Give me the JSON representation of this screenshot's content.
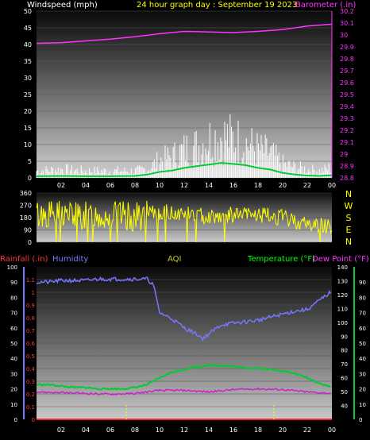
{
  "header": {
    "left_label": "Windspeed (mph)",
    "center_label": "24 hour graph day : September 19 2023",
    "right_label": "Barometer (.in)"
  },
  "hour_ticks": [
    "02",
    "04",
    "06",
    "08",
    "10",
    "12",
    "14",
    "16",
    "18",
    "20",
    "22",
    "00"
  ],
  "colors": {
    "windspeed": "#ffffff",
    "gust": "#00cc33",
    "barometer": "#ff33ff",
    "direction": "#ffff00",
    "humidity": "#7777ff",
    "temperature": "#00cc33",
    "dewpoint": "#cc22cc",
    "rainfall": "#ff2222",
    "label_yellow": "#ffff00",
    "label_magenta": "#ff33ff",
    "label_green": "#00ff00",
    "label_red": "#ff3333",
    "label_blue": "#7777ff"
  },
  "chart_data": [
    {
      "type": "line",
      "name": "wind-barometer",
      "x_labels": [
        "02",
        "04",
        "06",
        "08",
        "10",
        "12",
        "14",
        "16",
        "18",
        "20",
        "22",
        "00"
      ],
      "x_range_hours": [
        0,
        24
      ],
      "left_axis": {
        "label": "Windspeed (mph)",
        "ylim": [
          0,
          50
        ],
        "ticks": [
          "0",
          "5",
          "10",
          "15",
          "20",
          "25",
          "30",
          "35",
          "40",
          "45",
          "50"
        ]
      },
      "right_axis": {
        "label": "Barometer (.in)",
        "ylim": [
          28.8,
          30.2
        ],
        "ticks": [
          "28.8",
          "28.9",
          "29",
          "29.1",
          "29.2",
          "29.3",
          "29.4",
          "29.5",
          "29.6",
          "29.7",
          "29.8",
          "29.9",
          "30",
          "30.1",
          "30.2"
        ]
      },
      "series": [
        {
          "axis": "right",
          "hours": [
            0,
            2,
            4,
            6,
            8,
            10,
            12,
            14,
            16,
            18,
            20,
            22,
            24
          ],
          "values": [
            29.93,
            29.935,
            29.95,
            29.965,
            29.985,
            30.01,
            30.03,
            30.025,
            30.02,
            30.03,
            30.045,
            30.075,
            30.09
          ]
        },
        {
          "axis": "left",
          "hours": [
            0,
            2,
            4,
            6,
            8,
            9,
            10,
            11,
            12,
            13,
            14,
            15,
            16,
            17,
            18,
            19,
            20,
            21,
            22,
            23,
            24
          ],
          "values": [
            2,
            2.5,
            2,
            2,
            2,
            2.5,
            5,
            6,
            8,
            9,
            11,
            12,
            11,
            10,
            8,
            7,
            4,
            3,
            2.5,
            2,
            3
          ]
        },
        {
          "axis": "left",
          "hours": [
            0,
            2,
            4,
            6,
            8,
            9,
            10,
            11,
            12,
            13,
            14,
            15,
            16,
            17,
            18,
            19,
            20,
            21,
            22,
            23,
            24
          ],
          "values": [
            0.5,
            0.6,
            0.5,
            0.5,
            0.6,
            1,
            1.8,
            2.2,
            3,
            3.5,
            4,
            4.5,
            4.2,
            3.8,
            3,
            2.5,
            1.5,
            1,
            0.7,
            0.6,
            0.8
          ]
        }
      ]
    },
    {
      "type": "line",
      "name": "wind-direction",
      "x_range_hours": [
        0,
        24
      ],
      "left_axis": {
        "ylim": [
          0,
          360
        ],
        "ticks": [
          "0",
          "90",
          "180",
          "270",
          "360"
        ]
      },
      "compass_labels": [
        "N",
        "W",
        "S",
        "E",
        "N"
      ],
      "series": [
        {
          "hours": [
            0,
            2,
            4,
            6,
            8,
            10,
            12,
            14,
            16,
            18,
            20,
            22,
            24
          ],
          "values": [
            200,
            210,
            190,
            200,
            180,
            220,
            210,
            190,
            200,
            200,
            180,
            130,
            120
          ]
        }
      ]
    },
    {
      "type": "line",
      "name": "temperature-humidity",
      "x_labels": [
        "02",
        "04",
        "06",
        "08",
        "10",
        "12",
        "14",
        "16",
        "18",
        "20",
        "22",
        "00"
      ],
      "x_range_hours": [
        0,
        24
      ],
      "axes": {
        "rainfall": {
          "label": "Rainfall (.in)",
          "ylim": [
            0,
            1.2
          ],
          "ticks": [
            "0",
            "0.1",
            "0.2",
            "0.3",
            "0.4",
            "0.5",
            "0.6",
            "0.7",
            "0.8",
            "0.9",
            "1",
            "1.1"
          ]
        },
        "humidity": {
          "label": "Humidity",
          "ylim": [
            0,
            100
          ],
          "ticks": [
            "0",
            "10",
            "20",
            "30",
            "40",
            "50",
            "60",
            "70",
            "80",
            "90",
            "100"
          ]
        },
        "temperature": {
          "label": "Temperature (°F)",
          "ylim": [
            30,
            140
          ],
          "ticks": [
            "40",
            "50",
            "60",
            "70",
            "80",
            "90",
            "100",
            "110",
            "120",
            "130",
            "140"
          ]
        },
        "dewpoint": {
          "label": "Dew Point (°F)",
          "ylim": [
            0,
            100
          ],
          "ticks": [
            "0",
            "10",
            "20",
            "30",
            "40",
            "50",
            "60",
            "70",
            "80",
            "90"
          ]
        },
        "aqi": {
          "label": "AQI"
        }
      },
      "series": [
        {
          "axis": "humidity",
          "hours": [
            0,
            1,
            2,
            3,
            4,
            5,
            6,
            7,
            8,
            9,
            9.5,
            10,
            11,
            12,
            13,
            13.5,
            14,
            15,
            16,
            17,
            18,
            19,
            20,
            21,
            22,
            23,
            24
          ],
          "values": [
            90,
            90,
            91,
            91,
            91,
            92,
            92,
            92,
            92,
            92,
            88,
            70,
            66,
            60,
            56,
            53,
            56,
            62,
            63,
            64,
            65,
            67,
            69,
            71,
            72,
            78,
            84
          ]
        },
        {
          "axis": "temperature",
          "hours": [
            0,
            1,
            2,
            3,
            4,
            5,
            6,
            7,
            8,
            9,
            10,
            11,
            12,
            13,
            14,
            15,
            16,
            17,
            18,
            19,
            20,
            21,
            22,
            23,
            24
          ],
          "values": [
            55,
            55,
            54,
            53,
            53,
            52,
            52,
            52,
            53,
            55,
            60,
            64,
            66,
            68,
            69,
            69,
            68,
            67,
            67,
            66,
            65,
            63,
            60,
            56,
            53
          ]
        },
        {
          "axis": "dewpoint",
          "hours": [
            0,
            2,
            4,
            6,
            8,
            10,
            12,
            14,
            16,
            18,
            20,
            22,
            24
          ],
          "values": [
            18,
            17.5,
            17,
            16.5,
            17,
            19,
            19,
            18,
            19.5,
            20,
            19.5,
            18,
            17
          ]
        },
        {
          "axis": "rainfall",
          "hours": [
            0,
            24
          ],
          "values": [
            0,
            0
          ]
        }
      ]
    }
  ]
}
